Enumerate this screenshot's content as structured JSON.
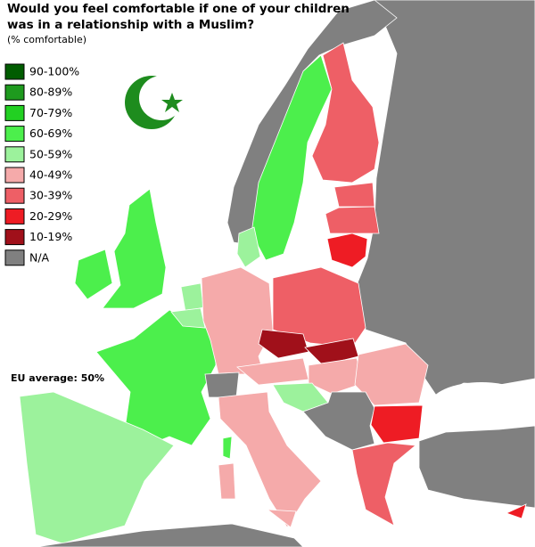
{
  "map": {
    "title": [
      "Would you feel comfortable if one of your children",
      "was in a relationship with a Muslim?"
    ],
    "subtitle": "(% comfortable)",
    "legend": [
      {
        "label": "90-100%",
        "color": "#005c00"
      },
      {
        "label": "80-89%",
        "color": "#1e9a1e"
      },
      {
        "label": "70-79%",
        "color": "#22d022"
      },
      {
        "label": "60-69%",
        "color": "#4cef4c"
      },
      {
        "label": "50-59%",
        "color": "#9cf29c"
      },
      {
        "label": "40-49%",
        "color": "#f5aaaa"
      },
      {
        "label": "30-39%",
        "color": "#ee5f66"
      },
      {
        "label": "20-29%",
        "color": "#ee1c24"
      },
      {
        "label": "10-19%",
        "color": "#a0101a"
      },
      {
        "label": "N/A",
        "color": "#808080"
      }
    ],
    "annotation": "EU average: 50%"
  }
}
